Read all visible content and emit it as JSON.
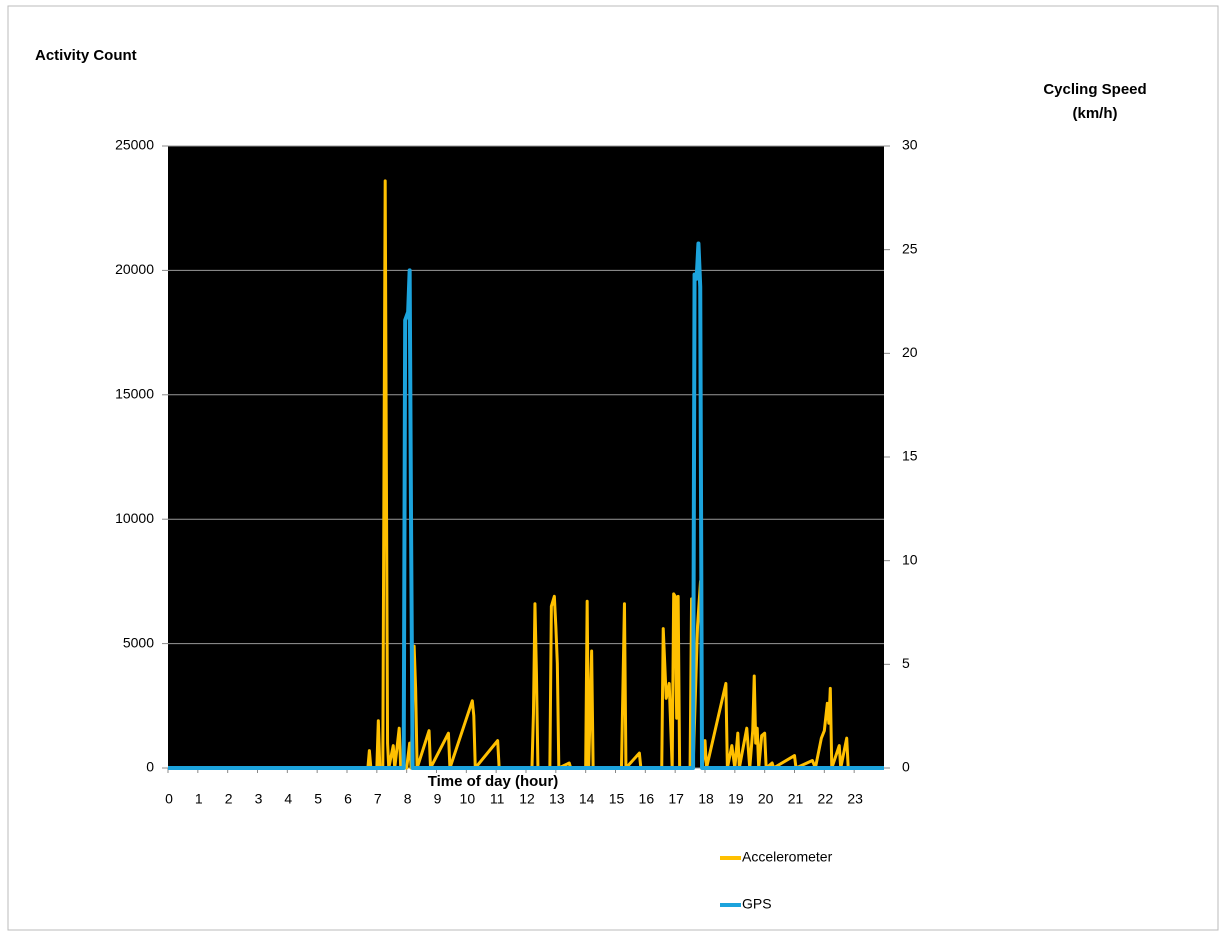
{
  "chart_data": {
    "type": "line",
    "title": "Activity Count",
    "y2_label": "Cycling Speed (km/h)",
    "x_label": "Time of day (hour)",
    "xlim": [
      0,
      24
    ],
    "xticks": [
      0,
      1,
      2,
      3,
      4,
      5,
      6,
      7,
      8,
      9,
      10,
      11,
      12,
      13,
      14,
      15,
      16,
      17,
      18,
      19,
      20,
      21,
      22,
      23
    ],
    "ylim": [
      0,
      25000
    ],
    "yticks": [
      0,
      5000,
      10000,
      15000,
      20000,
      25000
    ],
    "y2lim": [
      0,
      30
    ],
    "y2ticks": [
      0,
      5,
      10,
      15,
      20,
      25,
      30
    ],
    "grid": true,
    "background": "#000000",
    "series": [
      {
        "name": "Accelerometer",
        "color": "#ffc000",
        "axis": "y",
        "x": [
          0,
          6.7,
          6.75,
          6.8,
          7.0,
          7.05,
          7.1,
          7.2,
          7.25,
          7.28,
          7.32,
          7.36,
          7.4,
          7.55,
          7.6,
          7.75,
          7.8,
          8.0,
          8.1,
          8.15,
          8.25,
          8.3,
          8.35,
          8.75,
          8.8,
          9.4,
          9.45,
          10.2,
          10.25,
          10.3,
          11.05,
          11.1,
          12.2,
          12.25,
          12.3,
          12.35,
          12.4,
          12.8,
          12.85,
          12.95,
          13.0,
          13.05,
          13.1,
          13.45,
          13.5,
          14.0,
          14.05,
          14.1,
          14.2,
          14.25,
          15.2,
          15.3,
          15.35,
          15.8,
          15.85,
          16.55,
          16.6,
          16.7,
          16.8,
          16.9,
          16.95,
          17.0,
          17.05,
          17.1,
          17.15,
          17.5,
          17.55,
          17.6,
          17.75,
          17.85,
          17.9,
          18.0,
          18.05,
          18.7,
          18.75,
          18.9,
          19.0,
          19.1,
          19.15,
          19.4,
          19.5,
          19.6,
          19.65,
          19.7,
          19.75,
          19.8,
          19.9,
          20.0,
          20.05,
          20.25,
          20.3,
          21.0,
          21.05,
          21.6,
          21.7,
          21.9,
          22.0,
          22.1,
          22.15,
          22.2,
          22.25,
          22.5,
          22.55,
          22.75,
          22.8,
          24
        ],
        "values": [
          0,
          0,
          700,
          0,
          0,
          1900,
          0,
          0,
          15000,
          23600,
          11800,
          1000,
          0,
          900,
          0,
          1600,
          0,
          0,
          1000,
          0,
          4900,
          3200,
          0,
          1500,
          0,
          1400,
          0,
          2700,
          2100,
          0,
          1100,
          0,
          0,
          2200,
          6600,
          3800,
          0,
          0,
          6500,
          6900,
          5700,
          4200,
          0,
          200,
          0,
          0,
          6700,
          0,
          4700,
          0,
          0,
          6600,
          0,
          600,
          0,
          0,
          5600,
          2800,
          3400,
          0,
          7000,
          6900,
          2000,
          6900,
          0,
          0,
          6800,
          0,
          5700,
          7500,
          0,
          1100,
          0,
          3400,
          0,
          900,
          0,
          1400,
          0,
          1600,
          0,
          1500,
          3700,
          1000,
          1600,
          0,
          1300,
          1400,
          0,
          200,
          0,
          500,
          0,
          300,
          0,
          1200,
          1500,
          2600,
          1800,
          3200,
          0,
          900,
          0,
          1200,
          0,
          0
        ]
      },
      {
        "name": "GPS",
        "color": "#1ca3dc",
        "axis": "y2",
        "x": [
          0,
          7.9,
          7.95,
          8.0,
          8.05,
          8.1,
          8.15,
          8.2,
          8.25,
          17.6,
          17.65,
          17.72,
          17.78,
          17.84,
          17.9,
          17.95,
          24
        ],
        "values": [
          0,
          0,
          21.6,
          21.8,
          22,
          24,
          11,
          0,
          0,
          0,
          23.8,
          23.6,
          25.3,
          23.2,
          0,
          0,
          0
        ]
      }
    ]
  }
}
